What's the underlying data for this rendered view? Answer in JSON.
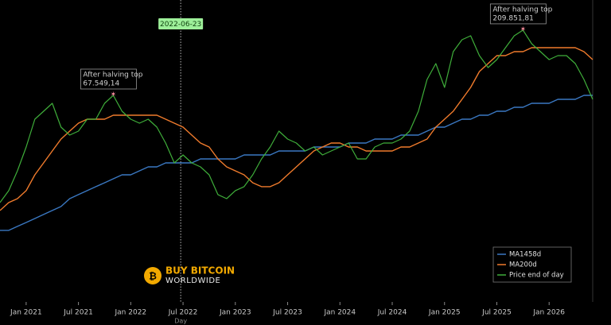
{
  "chart_data": {
    "type": "line",
    "log": true,
    "x_label": "Day",
    "x": [
      "2020-10",
      "2020-11",
      "2020-12",
      "2021-01",
      "2021-02",
      "2021-03",
      "2021-04",
      "2021-05",
      "2021-06",
      "2021-07",
      "2021-08",
      "2021-09",
      "2021-10",
      "2021-11",
      "2021-12",
      "2022-01",
      "2022-02",
      "2022-03",
      "2022-04",
      "2022-05",
      "2022-06",
      "2022-07",
      "2022-08",
      "2022-09",
      "2022-10",
      "2022-11",
      "2022-12",
      "2023-01",
      "2023-02",
      "2023-03",
      "2023-04",
      "2023-05",
      "2023-06",
      "2023-07",
      "2023-08",
      "2023-09",
      "2023-10",
      "2023-11",
      "2023-12",
      "2024-01",
      "2024-02",
      "2024-03",
      "2024-04",
      "2024-05",
      "2024-06",
      "2024-07",
      "2024-08",
      "2024-09",
      "2024-10",
      "2024-11",
      "2024-12",
      "2025-01",
      "2025-02",
      "2025-03",
      "2025-04",
      "2025-05",
      "2025-06",
      "2025-07",
      "2025-08",
      "2025-09",
      "2025-10",
      "2025-11",
      "2025-12",
      "2026-01",
      "2026-02",
      "2026-03",
      "2026-04",
      "2026-05",
      "2026-06"
    ],
    "xlim": [
      "2020-10",
      "2026-06"
    ],
    "xticks": [
      {
        "value": "2021-01",
        "label": "Jan 2021"
      },
      {
        "value": "2021-07",
        "label": "Jul 2021"
      },
      {
        "value": "2022-01",
        "label": "Jan 2022"
      },
      {
        "value": "2022-07",
        "label": "Jul 2022"
      },
      {
        "value": "2023-01",
        "label": "Jan 2023"
      },
      {
        "value": "2023-07",
        "label": "Jul 2023"
      },
      {
        "value": "2024-01",
        "label": "Jan 2024"
      },
      {
        "value": "2024-07",
        "label": "Jul 2024"
      },
      {
        "value": "2025-01",
        "label": "Jan 2025"
      },
      {
        "value": "2025-07",
        "label": "Jul 2025"
      },
      {
        "value": "2026-01",
        "label": "Jan 2026"
      }
    ],
    "ylim": [
      1860,
      354500
    ],
    "series": [
      {
        "name": "MA1458d",
        "color": "#3a78c2",
        "values": [
          6460,
          6460,
          6920,
          7410,
          7940,
          8510,
          9120,
          9770,
          11210,
          12020,
          12880,
          13800,
          14780,
          15840,
          16970,
          16970,
          18190,
          19490,
          19490,
          20880,
          20880,
          20880,
          20880,
          22370,
          22370,
          22370,
          22370,
          22370,
          23970,
          23970,
          23970,
          23970,
          25690,
          25690,
          25690,
          25690,
          27520,
          27520,
          27520,
          27520,
          29490,
          29490,
          29490,
          31600,
          31600,
          31600,
          33860,
          33860,
          33860,
          36280,
          38870,
          38870,
          41650,
          44630,
          44630,
          47820,
          47820,
          51240,
          51240,
          54900,
          54900,
          58830,
          58830,
          58830,
          63040,
          63040,
          63040,
          67549,
          67549
        ]
      },
      {
        "name": "MA200d",
        "color": "#f07b2c",
        "values": [
          9120,
          10470,
          11210,
          12880,
          16970,
          20880,
          25690,
          31600,
          36280,
          41650,
          44630,
          44630,
          44630,
          47820,
          47820,
          47820,
          47820,
          47820,
          47820,
          44630,
          41650,
          38870,
          33860,
          29490,
          27520,
          22370,
          19490,
          18190,
          16970,
          14780,
          13800,
          13800,
          14780,
          16970,
          19490,
          22370,
          25690,
          27520,
          29490,
          29490,
          27520,
          27520,
          25690,
          25690,
          25690,
          25690,
          27520,
          27520,
          29490,
          31600,
          38870,
          44630,
          51240,
          63040,
          77550,
          102200,
          117400,
          134800,
          134800,
          144400,
          144400,
          154700,
          154700,
          154700,
          154700,
          154700,
          154700,
          144400,
          125800
        ]
      },
      {
        "name": "Price end of day",
        "color": "#3fae3a",
        "values": [
          10470,
          12880,
          18190,
          27520,
          44630,
          51240,
          58830,
          38870,
          33860,
          36280,
          44630,
          44630,
          58830,
          67549,
          51240,
          44630,
          41650,
          44630,
          38870,
          29490,
          20880,
          23970,
          20880,
          19490,
          16970,
          12020,
          11210,
          12880,
          13800,
          16970,
          22370,
          27520,
          36280,
          31600,
          29490,
          25690,
          27520,
          23970,
          25690,
          27520,
          29490,
          22370,
          22370,
          27520,
          29490,
          29490,
          31600,
          36280,
          51240,
          89040,
          117400,
          77550,
          144400,
          177600,
          190300,
          134800,
          109500,
          125800,
          154700,
          190300,
          209851,
          165800,
          144400,
          125800,
          134800,
          134800,
          117400,
          89040,
          63040
        ]
      }
    ],
    "legend": "lower right",
    "marker_date": "2022-06-23",
    "annotations": [
      {
        "title": "After halving top",
        "x": "2021-11",
        "value": 67549.14,
        "value_label": "67.549,14"
      },
      {
        "title": "After halving top",
        "x": "2025-10",
        "value": 209851.81,
        "value_label": "209.851,81"
      }
    ],
    "watermark": [
      "BUY BITCOIN",
      "WORLDWIDE"
    ]
  }
}
